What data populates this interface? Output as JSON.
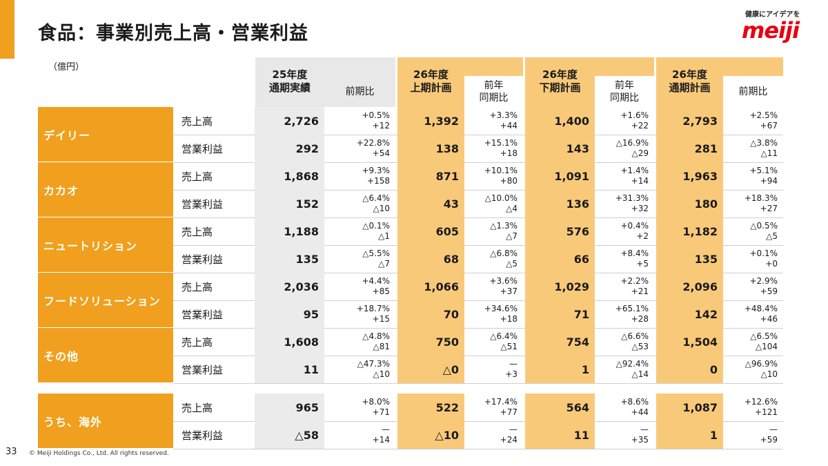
{
  "title": "食品：事業別売上高・営業利益",
  "tagline": "健康にアイデアを",
  "logo_text": "meiji",
  "unit": "（億円）",
  "page_number": "33",
  "copyright": "© Meiji Holdings Co., Ltd. All rights reserved.",
  "colors": {
    "accent": "#f0a01e",
    "highlight": "#f9c97a",
    "gray": "#ebebeb",
    "logo": "#e60012"
  },
  "headers": {
    "fy25": "25年度\n通期実績",
    "fy25_chg": "前期比",
    "h1": "26年度\n上期計画",
    "h1_chg": "前年\n同期比",
    "h2": "26年度\n下期計画",
    "h2_chg": "前年\n同期比",
    "fy26": "26年度\n通期計画",
    "fy26_chg": "前期比"
  },
  "segments": [
    {
      "name": "デイリー",
      "rows": [
        {
          "metric": "売上高",
          "fy25": "2,726",
          "fy25_chg": [
            "+0.5%",
            "+12"
          ],
          "h1": "1,392",
          "h1_chg": [
            "+3.3%",
            "+44"
          ],
          "h2": "1,400",
          "h2_chg": [
            "+1.6%",
            "+22"
          ],
          "fy26": "2,793",
          "fy26_chg": [
            "+2.5%",
            "+67"
          ]
        },
        {
          "metric": "営業利益",
          "fy25": "292",
          "fy25_chg": [
            "+22.8%",
            "+54"
          ],
          "h1": "138",
          "h1_chg": [
            "+15.1%",
            "+18"
          ],
          "h2": "143",
          "h2_chg": [
            "△16.9%",
            "△29"
          ],
          "fy26": "281",
          "fy26_chg": [
            "△3.8%",
            "△11"
          ]
        }
      ]
    },
    {
      "name": "カカオ",
      "rows": [
        {
          "metric": "売上高",
          "fy25": "1,868",
          "fy25_chg": [
            "+9.3%",
            "+158"
          ],
          "h1": "871",
          "h1_chg": [
            "+10.1%",
            "+80"
          ],
          "h2": "1,091",
          "h2_chg": [
            "+1.4%",
            "+14"
          ],
          "fy26": "1,963",
          "fy26_chg": [
            "+5.1%",
            "+94"
          ]
        },
        {
          "metric": "営業利益",
          "fy25": "152",
          "fy25_chg": [
            "△6.4%",
            "△10"
          ],
          "h1": "43",
          "h1_chg": [
            "△10.0%",
            "△4"
          ],
          "h2": "136",
          "h2_chg": [
            "+31.3%",
            "+32"
          ],
          "fy26": "180",
          "fy26_chg": [
            "+18.3%",
            "+27"
          ]
        }
      ]
    },
    {
      "name": "ニュートリション",
      "rows": [
        {
          "metric": "売上高",
          "fy25": "1,188",
          "fy25_chg": [
            "△0.1%",
            "△1"
          ],
          "h1": "605",
          "h1_chg": [
            "△1.3%",
            "△7"
          ],
          "h2": "576",
          "h2_chg": [
            "+0.4%",
            "+2"
          ],
          "fy26": "1,182",
          "fy26_chg": [
            "△0.5%",
            "△5"
          ]
        },
        {
          "metric": "営業利益",
          "fy25": "135",
          "fy25_chg": [
            "△5.5%",
            "△7"
          ],
          "h1": "68",
          "h1_chg": [
            "△6.8%",
            "△5"
          ],
          "h2": "66",
          "h2_chg": [
            "+8.4%",
            "+5"
          ],
          "fy26": "135",
          "fy26_chg": [
            "+0.1%",
            "+0"
          ]
        }
      ]
    },
    {
      "name": "フードソリューション",
      "rows": [
        {
          "metric": "売上高",
          "fy25": "2,036",
          "fy25_chg": [
            "+4.4%",
            "+85"
          ],
          "h1": "1,066",
          "h1_chg": [
            "+3.6%",
            "+37"
          ],
          "h2": "1,029",
          "h2_chg": [
            "+2.2%",
            "+21"
          ],
          "fy26": "2,096",
          "fy26_chg": [
            "+2.9%",
            "+59"
          ]
        },
        {
          "metric": "営業利益",
          "fy25": "95",
          "fy25_chg": [
            "+18.7%",
            "+15"
          ],
          "h1": "70",
          "h1_chg": [
            "+34.6%",
            "+18"
          ],
          "h2": "71",
          "h2_chg": [
            "+65.1%",
            "+28"
          ],
          "fy26": "142",
          "fy26_chg": [
            "+48.4%",
            "+46"
          ]
        }
      ]
    },
    {
      "name": "その他",
      "rows": [
        {
          "metric": "売上高",
          "fy25": "1,608",
          "fy25_chg": [
            "△4.8%",
            "△81"
          ],
          "h1": "750",
          "h1_chg": [
            "△6.4%",
            "△51"
          ],
          "h2": "754",
          "h2_chg": [
            "△6.6%",
            "△53"
          ],
          "fy26": "1,504",
          "fy26_chg": [
            "△6.5%",
            "△104"
          ]
        },
        {
          "metric": "営業利益",
          "fy25": "11",
          "fy25_chg": [
            "△47.3%",
            "△10"
          ],
          "h1": "△0",
          "h1_chg": [
            "—",
            "+3"
          ],
          "h2": "1",
          "h2_chg": [
            "△92.4%",
            "△14"
          ],
          "fy26": "0",
          "fy26_chg": [
            "△96.9%",
            "△10"
          ]
        }
      ]
    },
    {
      "name": "うち、海外",
      "rows": [
        {
          "metric": "売上高",
          "fy25": "965",
          "fy25_chg": [
            "+8.0%",
            "+71"
          ],
          "h1": "522",
          "h1_chg": [
            "+17.4%",
            "+77"
          ],
          "h2": "564",
          "h2_chg": [
            "+8.6%",
            "+44"
          ],
          "fy26": "1,087",
          "fy26_chg": [
            "+12.6%",
            "+121"
          ]
        },
        {
          "metric": "営業利益",
          "fy25": "△58",
          "fy25_chg": [
            "—",
            "+14"
          ],
          "h1": "△10",
          "h1_chg": [
            "—",
            "+24"
          ],
          "h2": "11",
          "h2_chg": [
            "—",
            "+35"
          ],
          "fy26": "1",
          "fy26_chg": [
            "—",
            "+59"
          ]
        }
      ]
    }
  ]
}
